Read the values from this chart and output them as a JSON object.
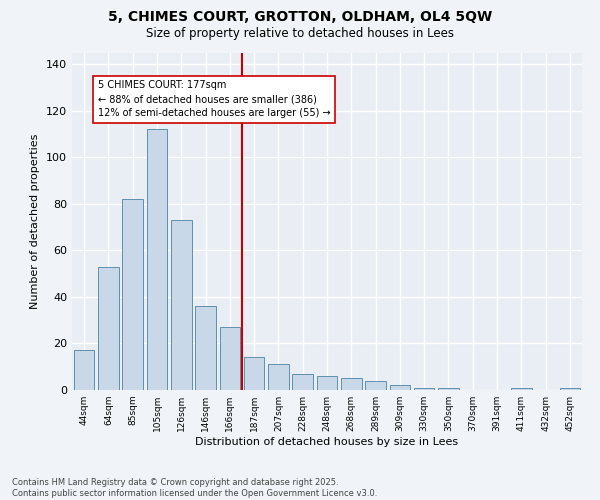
{
  "title": "5, CHIMES COURT, GROTTON, OLDHAM, OL4 5QW",
  "subtitle": "Size of property relative to detached houses in Lees",
  "xlabel": "Distribution of detached houses by size in Lees",
  "ylabel": "Number of detached properties",
  "bar_color": "#c8d8e8",
  "bar_edge_color": "#6090b0",
  "background_color": "#e8eef4",
  "grid_color": "#ffffff",
  "fig_background": "#f0f4f8",
  "categories": [
    "44sqm",
    "64sqm",
    "85sqm",
    "105sqm",
    "126sqm",
    "146sqm",
    "166sqm",
    "187sqm",
    "207sqm",
    "228sqm",
    "248sqm",
    "268sqm",
    "289sqm",
    "309sqm",
    "330sqm",
    "350sqm",
    "370sqm",
    "391sqm",
    "411sqm",
    "432sqm",
    "452sqm"
  ],
  "values": [
    17,
    53,
    82,
    112,
    73,
    36,
    27,
    14,
    11,
    7,
    6,
    5,
    4,
    2,
    1,
    1,
    0,
    0,
    1,
    0,
    1
  ],
  "vline_x": 6.5,
  "vline_color": "#cc0000",
  "annotation_line1": "5 CHIMES COURT: 177sqm",
  "annotation_line2": "← 88% of detached houses are smaller (386)",
  "annotation_line3": "12% of semi-detached houses are larger (55) →",
  "ylim": [
    0,
    145
  ],
  "yticks": [
    0,
    20,
    40,
    60,
    80,
    100,
    120,
    140
  ],
  "footnote1": "Contains HM Land Registry data © Crown copyright and database right 2025.",
  "footnote2": "Contains public sector information licensed under the Open Government Licence v3.0."
}
